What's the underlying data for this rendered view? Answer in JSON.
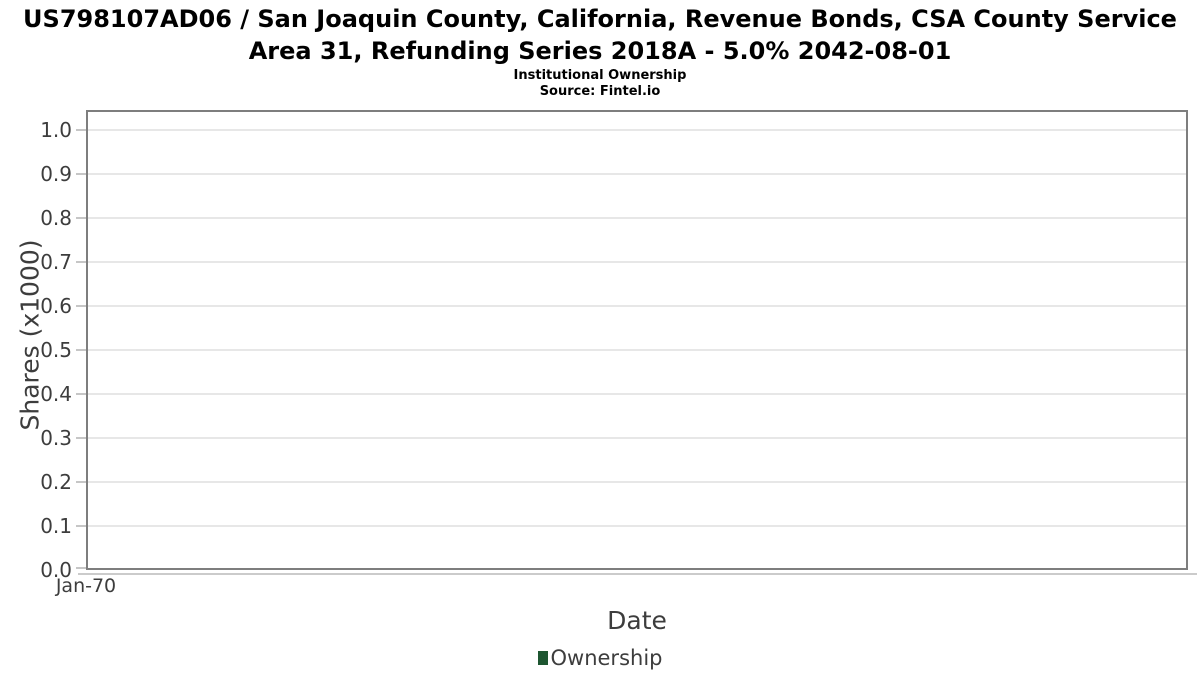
{
  "title": "US798107AD06 / San Joaquin County, California, Revenue Bonds, CSA County Service Area 31, Refunding Series 2018A - 5.0% 2042-08-01",
  "subtitle": "Institutional Ownership",
  "source": "Source: Fintel.io",
  "chart_data": {
    "type": "line",
    "title": "US798107AD06 / San Joaquin County, California, Revenue Bonds, CSA County Service Area 31, Refunding Series 2018A - 5.0% 2042-08-01",
    "subtitle": "Institutional Ownership",
    "source": "Source: Fintel.io",
    "xlabel": "Date",
    "ylabel": "Shares (x1000)",
    "x_tick_labels": [
      "Jan-70"
    ],
    "y_tick_labels": [
      "0.0",
      "0.1",
      "0.2",
      "0.3",
      "0.4",
      "0.5",
      "0.6",
      "0.7",
      "0.8",
      "0.9",
      "1.0"
    ],
    "y_tick_values": [
      0.0,
      0.1,
      0.2,
      0.3,
      0.4,
      0.5,
      0.6,
      0.7,
      0.8,
      0.9,
      1.0
    ],
    "ylim": [
      0.0,
      1.045
    ],
    "grid": "horizontal",
    "legend_position": "bottom",
    "series": [
      {
        "name": "Ownership",
        "color": "#1e5631",
        "x": [],
        "values": []
      }
    ]
  },
  "colors": {
    "plot_border": "#7e7e7e",
    "grid_line": "#e7e7e7",
    "tick_mark": "#c6c6c6",
    "axis_line": "#cbcbcb",
    "axis_text": "#3d3d3d",
    "title_text": "#000000",
    "series_ownership": "#1e5631"
  }
}
